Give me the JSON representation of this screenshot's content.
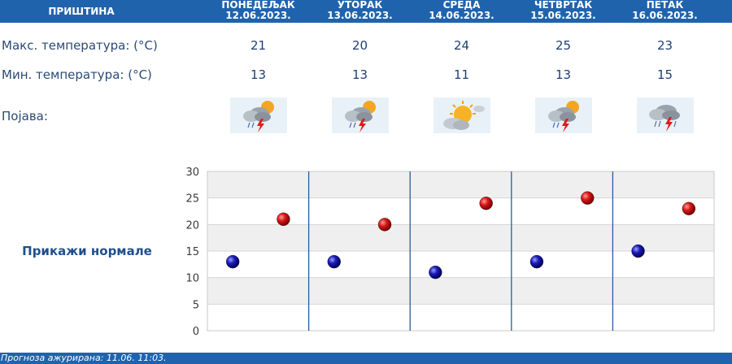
{
  "header": {
    "city": "ПРИШТИНА",
    "days": [
      {
        "name": "ПОНЕДЕЉАК",
        "date": "12.06.2023."
      },
      {
        "name": "УТОРАК",
        "date": "13.06.2023."
      },
      {
        "name": "СРЕДА",
        "date": "14.06.2023."
      },
      {
        "name": "ЧЕТВРТАК",
        "date": "15.06.2023."
      },
      {
        "name": "ПЕТАК",
        "date": "16.06.2023."
      }
    ]
  },
  "rows": {
    "max_label": "Макс. температура: (°C)",
    "min_label": "Мин. температура: (°C)",
    "phenomenon_label": "Појава:"
  },
  "forecast": {
    "max": [
      "21",
      "20",
      "24",
      "25",
      "23"
    ],
    "min": [
      "13",
      "13",
      "11",
      "13",
      "15"
    ],
    "icons": [
      "sun-cloud-thunderstorm-icon",
      "sun-cloud-thunderstorm-icon",
      "partly-cloudy-sun-icon",
      "sun-cloud-thunderstorm-icon",
      "cloud-thunderstorm-icon"
    ]
  },
  "normals_label": "Прикажи нормале",
  "chart_data": {
    "type": "scatter",
    "ylim": [
      0,
      30
    ],
    "yticks": [
      "0",
      "5",
      "10",
      "15",
      "20",
      "25",
      "30"
    ],
    "series": [
      {
        "values": [
          13,
          13,
          11,
          13,
          15
        ],
        "color": "#1d1da8"
      },
      {
        "values": [
          21,
          20,
          24,
          25,
          23
        ],
        "color": "#c41212"
      }
    ]
  },
  "footer": {
    "updated": "Прогноза ажурирана:  11.06.  11:03."
  }
}
